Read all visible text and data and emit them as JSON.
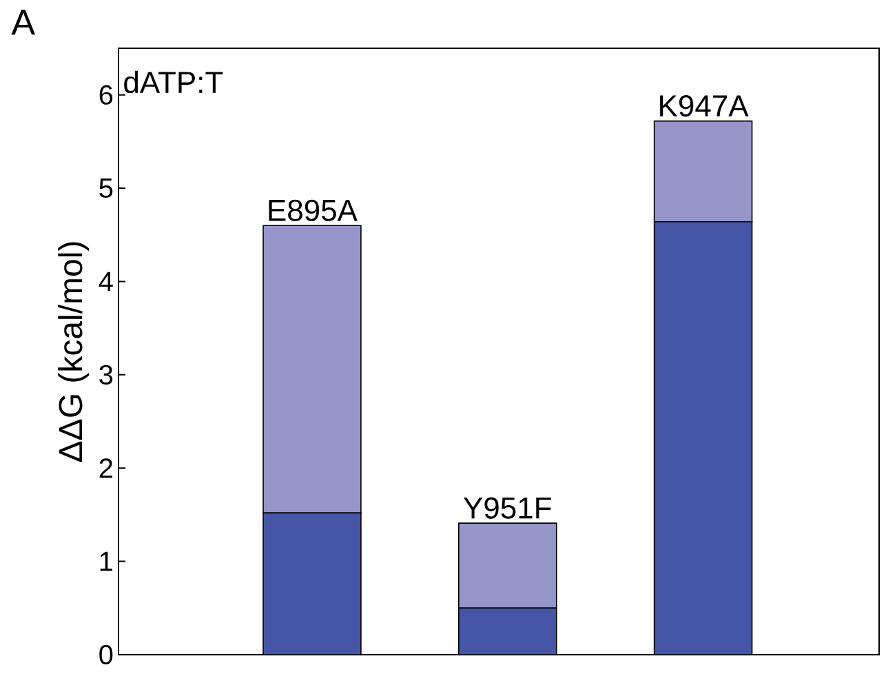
{
  "chart_data": {
    "type": "bar",
    "stacked": true,
    "categories": [
      "E895A",
      "Y951F",
      "K947A"
    ],
    "series": [
      {
        "color": "#4656a6",
        "values": [
          1.52,
          0.5,
          4.64
        ]
      },
      {
        "color": "#9696c8",
        "values": [
          3.08,
          0.91,
          1.08
        ]
      }
    ],
    "ylabel": "ΔΔG (kcal/mol)",
    "ylim": [
      0,
      6.5
    ],
    "yticks": [
      0,
      1,
      2,
      3,
      4,
      5,
      6
    ],
    "annotations": [
      "A",
      "dATP:T"
    ]
  }
}
